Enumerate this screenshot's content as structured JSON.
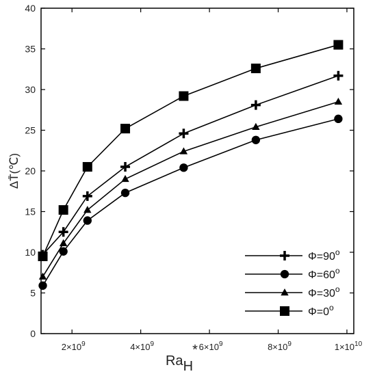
{
  "chart_data": {
    "type": "line",
    "xlabel": "Ra",
    "xlabel_sub": "H",
    "xlabel_star": "*",
    "ylabel": "ΔT̄(℃)",
    "ylim": [
      0,
      40
    ],
    "xlim": [
      1100000000.0,
      10200000000.0
    ],
    "y_ticks": [
      0,
      5,
      10,
      15,
      20,
      25,
      30,
      35,
      40
    ],
    "x_ticks": [
      {
        "value": 2000000000.0,
        "base": "2×10",
        "exp": "9"
      },
      {
        "value": 4000000000.0,
        "base": "4×10",
        "exp": "9"
      },
      {
        "value": 6000000000.0,
        "base": "6×10",
        "exp": "9"
      },
      {
        "value": 8000000000.0,
        "base": "8×10",
        "exp": "9"
      },
      {
        "value": 10000000000.0,
        "base": "1×10",
        "exp": "10"
      }
    ],
    "x": [
      1150000000.0,
      1750000000.0,
      2450000000.0,
      3550000000.0,
      5250000000.0,
      7350000000.0,
      9750000000.0
    ],
    "legend_position": "bottom-right",
    "series": [
      {
        "name": "Φ=90",
        "marker": "plus",
        "values": [
          9.7,
          12.5,
          16.9,
          20.5,
          24.6,
          28.1,
          31.7
        ]
      },
      {
        "name": "Φ=60",
        "marker": "circle",
        "values": [
          5.9,
          10.1,
          13.9,
          17.3,
          20.4,
          23.8,
          26.4
        ]
      },
      {
        "name": "Φ=30",
        "marker": "triangle",
        "values": [
          7.0,
          11.1,
          15.2,
          19.0,
          22.4,
          25.4,
          28.5
        ]
      },
      {
        "name": "Φ=0",
        "marker": "square",
        "values": [
          9.5,
          15.2,
          20.5,
          25.2,
          29.2,
          32.6,
          35.5
        ]
      }
    ],
    "legend_suffix": "o"
  }
}
